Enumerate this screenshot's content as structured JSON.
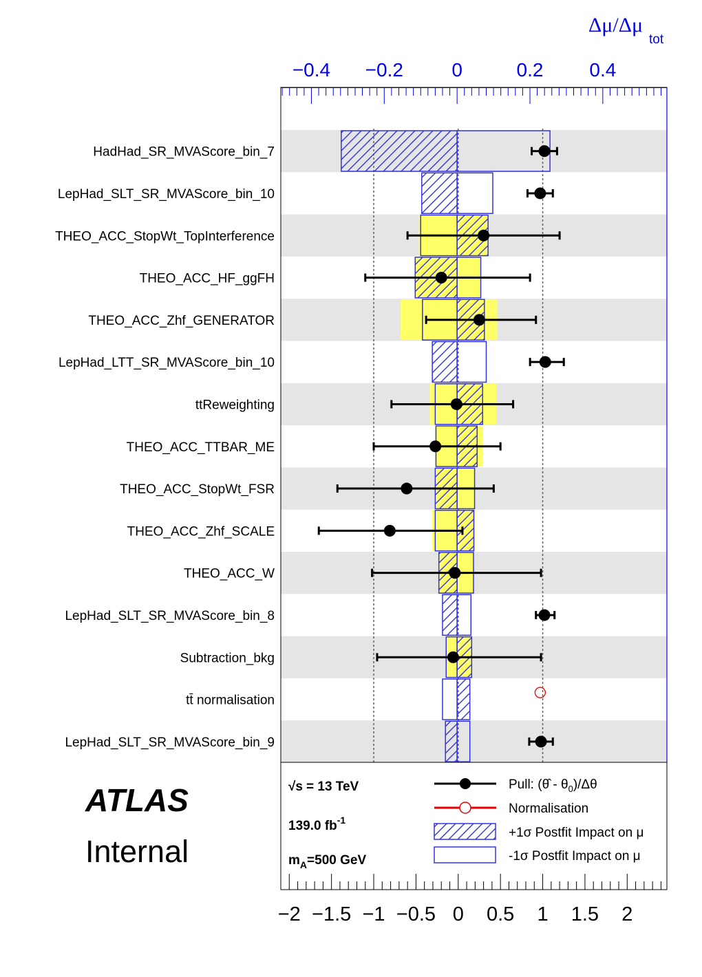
{
  "chart_data": {
    "type": "ranking",
    "top_axis": {
      "label": "Δμ/Δμ",
      "label_sub": "tot",
      "range": [
        -0.484,
        0.576
      ],
      "ticks": [
        -0.4,
        -0.2,
        0,
        0.2,
        0.4
      ],
      "tick_labels": [
        "−0.4",
        "−0.2",
        "0",
        "0.2",
        "0.4"
      ]
    },
    "bottom_axis": {
      "range": [
        -2.1,
        2.47
      ],
      "ticks": [
        -2,
        -1.5,
        -1,
        -0.5,
        0,
        0.5,
        1,
        1.5,
        2
      ],
      "tick_labels": [
        "−2",
        "−1.5",
        "−1",
        "−0.5",
        "0",
        "0.5",
        "1",
        "1.5",
        "2"
      ]
    },
    "reference_lines": [
      -1,
      0,
      1
    ],
    "parameters": [
      {
        "name": "HadHad_SR_MVAScore_bin_7",
        "pull": 1.02,
        "err_lo": 0.15,
        "err_hi": 0.15,
        "pull_type": "pull",
        "pre_up": null,
        "pre_down": null,
        "post_up": -0.318,
        "post_down": 0.255
      },
      {
        "name": "LepHad_SLT_SR_MVAScore_bin_10",
        "pull": 0.97,
        "err_lo": 0.15,
        "err_hi": 0.15,
        "pull_type": "pull",
        "pre_up": null,
        "pre_down": null,
        "post_up": -0.097,
        "post_down": 0.098
      },
      {
        "name": "THEO_ACC_StopWt_TopInterference",
        "pull": 0.3,
        "err_lo": 0.9,
        "err_hi": 0.9,
        "pull_type": "pull",
        "pre_up": 0.085,
        "pre_down": -0.105,
        "post_up": 0.085,
        "post_down": -0.1
      },
      {
        "name": "THEO_ACC_HF_ggFH",
        "pull": -0.2,
        "err_lo": 0.9,
        "err_hi": 1.05,
        "pull_type": "pull",
        "pre_up": -0.115,
        "pre_down": 0.065,
        "post_up": -0.115,
        "post_down": 0.065
      },
      {
        "name": "THEO_ACC_Zhf_GENERATOR",
        "pull": 0.25,
        "err_lo": 0.63,
        "err_hi": 0.67,
        "pull_type": "pull",
        "pre_up": 0.11,
        "pre_down": -0.155,
        "post_up": 0.075,
        "post_down": -0.095
      },
      {
        "name": "LepHad_LTT_SR_MVAScore_bin_10",
        "pull": 1.03,
        "err_lo": 0.18,
        "err_hi": 0.22,
        "pull_type": "pull",
        "pre_up": null,
        "pre_down": null,
        "post_up": -0.068,
        "post_down": 0.08
      },
      {
        "name": "ttReweighting",
        "pull": -0.02,
        "err_lo": 0.77,
        "err_hi": 0.67,
        "pull_type": "pull",
        "pre_up": 0.108,
        "pre_down": -0.075,
        "post_up": 0.07,
        "post_down": -0.06
      },
      {
        "name": "THEO_ACC_TTBAR_ME",
        "pull": -0.27,
        "err_lo": 0.73,
        "err_hi": 0.77,
        "pull_type": "pull",
        "pre_up": 0.07,
        "pre_down": -0.06,
        "post_up": 0.055,
        "post_down": -0.058
      },
      {
        "name": "THEO_ACC_StopWt_FSR",
        "pull": -0.61,
        "err_lo": 0.82,
        "err_hi": 1.03,
        "pull_type": "pull",
        "pre_up": -0.06,
        "pre_down": 0.048,
        "post_up": -0.06,
        "post_down": 0.048
      },
      {
        "name": "THEO_ACC_Zhf_SCALE",
        "pull": -0.81,
        "err_lo": 0.84,
        "err_hi": 0.86,
        "pull_type": "pull",
        "pre_up": 0.05,
        "pre_down": -0.068,
        "post_up": 0.046,
        "post_down": -0.06
      },
      {
        "name": "THEO_ACC_W",
        "pull": -0.04,
        "err_lo": 0.98,
        "err_hi": 1.02,
        "pull_type": "pull",
        "pre_up": -0.05,
        "pre_down": 0.045,
        "post_up": -0.05,
        "post_down": 0.045
      },
      {
        "name": "LepHad_SLT_SR_MVAScore_bin_8",
        "pull": 1.02,
        "err_lo": 0.1,
        "err_hi": 0.12,
        "pull_type": "pull",
        "pre_up": null,
        "pre_down": null,
        "post_up": -0.04,
        "post_down": 0.038
      },
      {
        "name": "Subtraction_bkg",
        "pull": -0.06,
        "err_lo": 0.9,
        "err_hi": 1.04,
        "pull_type": "pull",
        "pre_up": 0.04,
        "pre_down": -0.03,
        "post_up": 0.04,
        "post_down": -0.03
      },
      {
        "name": "tt̄ normalisation",
        "pull": 0.97,
        "err_lo": 0,
        "err_hi": 0,
        "pull_type": "normalisation",
        "pre_up": null,
        "pre_down": null,
        "post_up": 0.035,
        "post_down": -0.04
      },
      {
        "name": "LepHad_SLT_SR_MVAScore_bin_9",
        "pull": 0.98,
        "err_lo": 0.14,
        "err_hi": 0.14,
        "pull_type": "pull",
        "pre_up": null,
        "pre_down": null,
        "post_up": -0.032,
        "post_down": 0.035
      }
    ]
  },
  "legend": {
    "pull": "Pull: (θ̂ - θ",
    "pull_sub": "0",
    "pull_tail": ")/Δθ",
    "normalisation": "Normalisation",
    "post_up": "+1σ Postfit Impact on μ",
    "post_down": "-1σ Postfit Impact on μ"
  },
  "info": {
    "sqrt_s_prefix": "√s",
    "sqrt_s_value": "= 13 TeV",
    "lumi": "139.0 fb",
    "lumi_sup": "-1",
    "mass_prefix": "m",
    "mass_sub": "A",
    "mass_value": "=500 GeV"
  },
  "branding": {
    "experiment": "ATLAS",
    "status": "Internal"
  },
  "colors": {
    "yellow": "#ffff66",
    "stripe_grey": "#e5e5e5",
    "blue": "#0000ee",
    "impact_blue": "#3333dd",
    "norm_red": "#ee0000"
  }
}
